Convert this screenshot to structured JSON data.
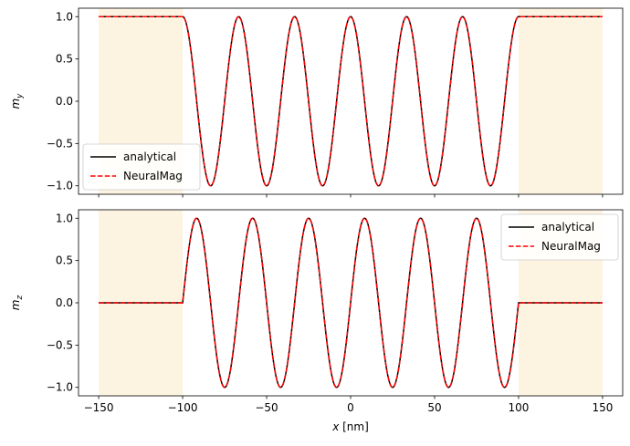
{
  "chart_data": [
    {
      "type": "line",
      "panel": "top",
      "ylabel": "m",
      "ylabel_sub": "y",
      "xlim": [
        -162,
        162
      ],
      "ylim": [
        -1.1,
        1.1
      ],
      "xticks": [
        -150,
        -100,
        -50,
        0,
        50,
        100,
        150
      ],
      "xtick_labels_visible": false,
      "yticks": [
        -1.0,
        -0.5,
        0.0,
        0.5,
        1.0
      ],
      "ytick_labels": [
        "−1.0",
        "−0.5",
        "0.0",
        "0.5",
        "1.0"
      ],
      "shaded_regions": [
        [
          -150,
          -100
        ],
        [
          100,
          150
        ]
      ],
      "shade_color": "#fdf3e1",
      "series": [
        {
          "name": "analytical",
          "color": "#000000",
          "style": "solid",
          "component": "my"
        },
        {
          "name": "NeuralMag",
          "color": "#ff0000",
          "style": "dashed",
          "component": "my"
        }
      ],
      "wave": {
        "x_range": [
          -100,
          100
        ],
        "period": 33.33,
        "outside_value": 1.0
      },
      "legend": "lower-left"
    },
    {
      "type": "line",
      "panel": "bottom",
      "ylabel": "m",
      "ylabel_sub": "z",
      "xlabel_italic": "x",
      "xlabel_unit": " [nm]",
      "xlim": [
        -162,
        162
      ],
      "ylim": [
        -1.1,
        1.1
      ],
      "xticks": [
        -150,
        -100,
        -50,
        0,
        50,
        100,
        150
      ],
      "xtick_labels": [
        "−150",
        "−100",
        "−50",
        "0",
        "50",
        "100",
        "150"
      ],
      "yticks": [
        -1.0,
        -0.5,
        0.0,
        0.5,
        1.0
      ],
      "ytick_labels": [
        "−1.0",
        "−0.5",
        "0.0",
        "0.5",
        "1.0"
      ],
      "shaded_regions": [
        [
          -150,
          -100
        ],
        [
          100,
          150
        ]
      ],
      "shade_color": "#fdf3e1",
      "series": [
        {
          "name": "analytical",
          "color": "#000000",
          "style": "solid",
          "component": "mz"
        },
        {
          "name": "NeuralMag",
          "color": "#ff0000",
          "style": "dashed",
          "component": "mz"
        }
      ],
      "wave": {
        "x_range": [
          -100,
          100
        ],
        "period": 33.33,
        "outside_value": 0.0
      },
      "legend": "upper-right"
    }
  ]
}
